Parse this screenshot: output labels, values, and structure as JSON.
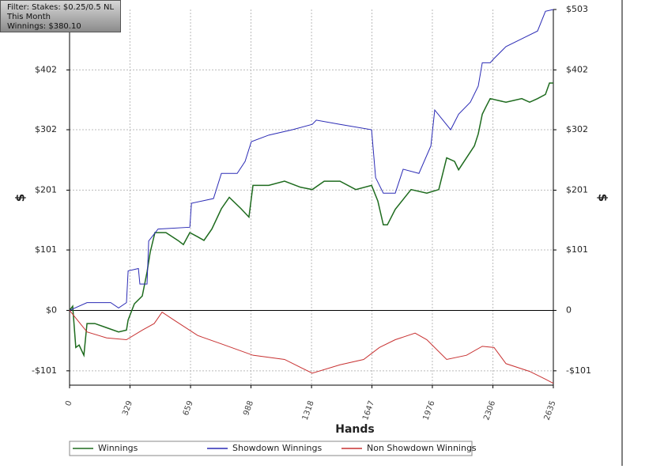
{
  "chart_data": {
    "type": "line",
    "filter": [
      "Filter: Stakes: $0.25/0.5 NL",
      "This Month",
      "Winnings: $380.10"
    ],
    "xlabel": "Hands",
    "ylabel": "$",
    "y2label": "$",
    "xlim": [
      0,
      2635
    ],
    "xticks": [
      0,
      329,
      659,
      988,
      1318,
      1647,
      1976,
      2306,
      2635
    ],
    "ylim": [
      -125,
      503
    ],
    "yticks": [
      {
        "value": 402,
        "label": "$402"
      },
      {
        "value": 302,
        "label": "$302"
      },
      {
        "value": 201,
        "label": "$201"
      },
      {
        "value": 101,
        "label": "$101"
      },
      {
        "value": 0,
        "label": "$0"
      },
      {
        "value": -101,
        "label": "-$101"
      }
    ],
    "y2lim": [
      -125,
      503
    ],
    "y2ticks": [
      {
        "value": 503,
        "label": "$503"
      },
      {
        "value": 402,
        "label": "$402"
      },
      {
        "value": 302,
        "label": "$302"
      },
      {
        "value": 201,
        "label": "$201"
      },
      {
        "value": 101,
        "label": "$101"
      },
      {
        "value": 0,
        "label": "0"
      },
      {
        "value": -101,
        "label": "-$101"
      }
    ],
    "grid": true,
    "series": [
      {
        "name": "Winnings",
        "color": "#1e6b1e",
        "x": [
          0,
          17,
          34,
          52,
          78,
          95,
          138,
          202,
          267,
          310,
          319,
          353,
          396,
          422,
          439,
          465,
          525,
          590,
          620,
          655,
          698,
          732,
          775,
          827,
          870,
          934,
          977,
          999,
          1085,
          1171,
          1257,
          1322,
          1387,
          1473,
          1559,
          1645,
          1679,
          1709,
          1731,
          1774,
          1860,
          1946,
          2011,
          2054,
          2097,
          2119,
          2162,
          2205,
          2226,
          2248,
          2269,
          2291,
          2377,
          2463,
          2506,
          2549,
          2592,
          2614,
          2635
        ],
        "values": [
          0,
          7,
          -62,
          -58,
          -75,
          -22,
          -22,
          -29,
          -36,
          -33,
          -16,
          11,
          24,
          64,
          97,
          130,
          130,
          117,
          110,
          130,
          123,
          117,
          136,
          170,
          189,
          170,
          156,
          209,
          209,
          216,
          206,
          202,
          216,
          216,
          202,
          209,
          183,
          143,
          143,
          169,
          202,
          196,
          202,
          255,
          249,
          235,
          255,
          275,
          295,
          328,
          341,
          354,
          348,
          354,
          348,
          354,
          361,
          380,
          380
        ]
      },
      {
        "name": "Showdown Winnings",
        "color": "#2b2bb5",
        "x": [
          0,
          95,
          224,
          267,
          310,
          319,
          375,
          383,
          422,
          431,
          482,
          655,
          664,
          784,
          827,
          913,
          956,
          990,
          1085,
          1214,
          1322,
          1344,
          1473,
          1645,
          1667,
          1709,
          1774,
          1817,
          1903,
          1968,
          1989,
          2076,
          2119,
          2183,
          2226,
          2248,
          2291,
          2312,
          2377,
          2463,
          2549,
          2592,
          2635
        ],
        "values": [
          0,
          13,
          13,
          4,
          13,
          66,
          70,
          44,
          44,
          116,
          136,
          139,
          179,
          187,
          229,
          229,
          249,
          282,
          293,
          302,
          311,
          318,
          311,
          302,
          222,
          196,
          196,
          236,
          229,
          275,
          335,
          302,
          328,
          348,
          375,
          414,
          414,
          421,
          441,
          454,
          467,
          500,
          503
        ]
      },
      {
        "name": "Non Showdown Winnings",
        "color": "#c83232",
        "x": [
          0,
          95,
          202,
          310,
          396,
          461,
          504,
          568,
          698,
          827,
          999,
          1171,
          1322,
          1473,
          1602,
          1688,
          1774,
          1882,
          1946,
          2054,
          2162,
          2248,
          2312,
          2377,
          2506,
          2592,
          2635
        ],
        "values": [
          0,
          -36,
          -46,
          -49,
          -33,
          -22,
          -3,
          -16,
          -42,
          -56,
          -75,
          -82,
          -105,
          -91,
          -82,
          -62,
          -49,
          -38,
          -49,
          -82,
          -75,
          -60,
          -62,
          -89,
          -102,
          -115,
          -122
        ]
      }
    ]
  }
}
